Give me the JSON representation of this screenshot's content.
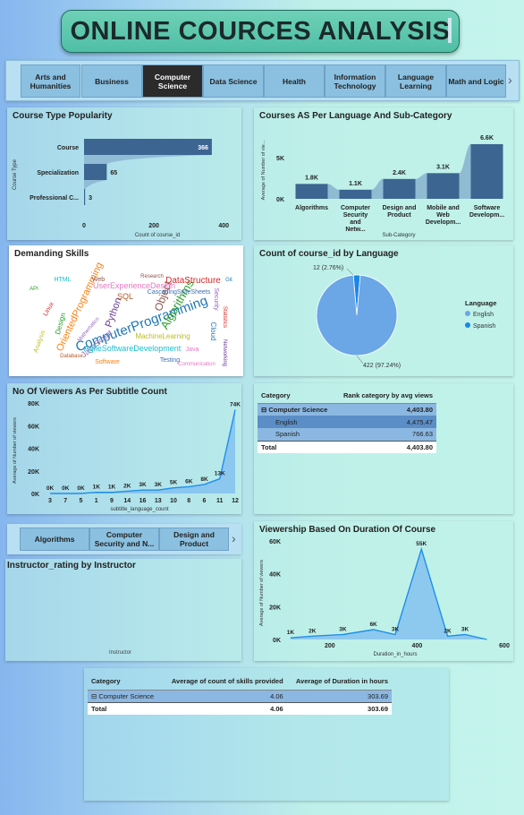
{
  "page_title": "ONLINE COURCES ANALYSIS",
  "tabs": [
    {
      "label": "Arts and Humanities",
      "active": false
    },
    {
      "label": "Business",
      "active": false
    },
    {
      "label": "Computer Science",
      "active": true
    },
    {
      "label": "Data Science",
      "active": false
    },
    {
      "label": "Health",
      "active": false
    },
    {
      "label": "Information Technology",
      "active": false
    },
    {
      "label": "Language Learning",
      "active": false
    },
    {
      "label": "Math and Logic",
      "active": false
    }
  ],
  "subtabs": [
    {
      "label": "Algorithms"
    },
    {
      "label": "Computer Security and N..."
    },
    {
      "label": "Design and Product"
    }
  ],
  "colors": {
    "bar": "#3c6592",
    "line": "#1f8fea",
    "pie_english": "#6ba6e6",
    "pie_spanish": "#1a86ea"
  },
  "wordcloud_title": "Demanding Skills",
  "wordcloud_words": [
    "ComputerProgramming",
    "Algorithms",
    "DataStructure",
    "JavaScript",
    "Object",
    "UserExperienceDesign",
    "AgileSoftwareDevelopment",
    "MachineLearning",
    "OrientedProgramming",
    "CascadingStyleSheets",
    "Python",
    "SQL",
    "Cloud",
    "Design",
    "Linux",
    "Security",
    "Web",
    "Java",
    "HTML",
    "Analysis",
    "Software",
    "Testing",
    "Networking",
    "Database",
    "Git",
    "API",
    "Statistics",
    "Mathematics",
    "Research",
    "Communication"
  ],
  "instructor_title": "Instructor_rating by Instructor",
  "instructor_xlabel": "Instructor",
  "table1": {
    "headers": [
      "Category",
      "Rank category by avg views"
    ],
    "rows": [
      {
        "label": "Computer Science",
        "value": "4,403.80",
        "level": 0,
        "expand": "⊟"
      },
      {
        "label": "English",
        "value": "4,475.47",
        "level": 1
      },
      {
        "label": "Spanish",
        "value": "766.63",
        "level": 1
      }
    ],
    "total_label": "Total",
    "total_value": "4,403.80"
  },
  "table2": {
    "headers": [
      "Category",
      "Average of count of skills provided",
      "Average of Duration in hours"
    ],
    "rows": [
      {
        "label": "Computer Science",
        "v1": "4.06",
        "v2": "303.69",
        "expand": "⊟"
      }
    ],
    "total_label": "Total",
    "total_v1": "4.06",
    "total_v2": "303.69"
  },
  "chart_data": [
    {
      "type": "bar",
      "orientation": "horizontal",
      "title": "Course Type Popularity",
      "categories": [
        "Course",
        "Specialization",
        "Professional C..."
      ],
      "values": [
        366,
        65,
        3
      ],
      "value_labels": [
        "366",
        "65",
        "3"
      ],
      "xlabel": "Count of course_id",
      "ylabel": "Course Type",
      "xticks": [
        "0",
        "200",
        "400"
      ],
      "xlim": [
        0,
        420
      ]
    },
    {
      "type": "bar",
      "title": "Courses AS Per Language And Sub-Category",
      "categories": [
        "Algorithms",
        "Computer Security and Netw...",
        "Design and Product",
        "Mobile and Web Developm...",
        "Software Developm..."
      ],
      "values": [
        1800,
        1100,
        2400,
        3100,
        6600
      ],
      "value_labels": [
        "1.8K",
        "1.1K",
        "2.4K",
        "3.1K",
        "6.6K"
      ],
      "xlabel": "Sub-Category",
      "ylabel": "Average of Number of vie...",
      "yticks": [
        "0K",
        "5K"
      ],
      "ylim": [
        0,
        8000
      ]
    },
    {
      "type": "pie",
      "title": "Count of course_id by Language",
      "legend_title": "Language",
      "legend_position": "right",
      "slices": [
        {
          "name": "English",
          "value": 422,
          "label": "422 (97.24%)"
        },
        {
          "name": "Spanish",
          "value": 12,
          "label": "12 (2.76%)"
        }
      ]
    },
    {
      "type": "area",
      "title": "No Of Viewers As Per Subtitle Count",
      "categories": [
        "3",
        "7",
        "5",
        "1",
        "9",
        "14",
        "16",
        "13",
        "10",
        "8",
        "6",
        "11",
        "12"
      ],
      "values": [
        0,
        0,
        0,
        1000,
        1000,
        2000,
        3000,
        3000,
        5000,
        6000,
        8000,
        13000,
        74000
      ],
      "value_labels": [
        "0K",
        "0K",
        "0K",
        "1K",
        "1K",
        "2K",
        "3K",
        "3K",
        "5K",
        "6K",
        "8K",
        "13K",
        "74K"
      ],
      "xlabel": "subtitle_language_count",
      "ylabel": "Average of Number of viewers",
      "yticks": [
        "0K",
        "20K",
        "40K",
        "60K",
        "80K"
      ],
      "ylim": [
        0,
        80000
      ]
    },
    {
      "type": "area",
      "title": "Viewership Based On Duration Of Course",
      "x": [
        110,
        160,
        230,
        300,
        350,
        410,
        470,
        510,
        560
      ],
      "values": [
        1000,
        2000,
        3000,
        6000,
        3000,
        55000,
        2000,
        3000,
        0
      ],
      "value_labels": [
        "1K",
        "2K",
        "3K",
        "6K",
        "3K",
        "55K",
        "2K",
        "3K",
        ""
      ],
      "xlabel": "Duration_in_hours",
      "ylabel": "Average of Number of viewers",
      "xticks": [
        "200",
        "400",
        "600"
      ],
      "yticks": [
        "0K",
        "20K",
        "40K",
        "60K"
      ],
      "ylim": [
        0,
        60000
      ]
    }
  ]
}
